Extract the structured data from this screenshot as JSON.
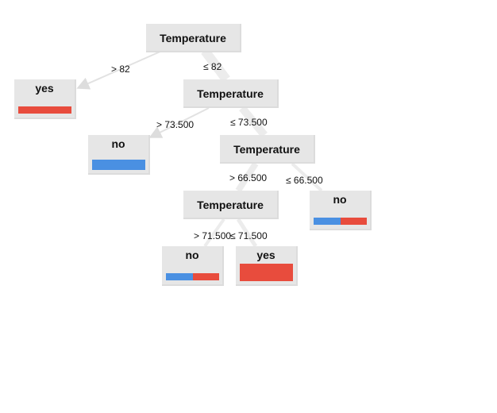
{
  "colors": {
    "no": "#4a90e2",
    "yes": "#e84c3d",
    "node_bg": "#e6e6e6",
    "edge": "#e8e8e8"
  },
  "tree": {
    "root": {
      "label": "Temperature"
    },
    "n1": {
      "label": "Temperature"
    },
    "n2": {
      "label": "Temperature"
    },
    "n3": {
      "label": "Temperature"
    },
    "leaf_yes_top": {
      "label": "yes",
      "dist": {
        "no": 0.0,
        "yes": 1.0
      }
    },
    "leaf_no_mid": {
      "label": "no",
      "dist": {
        "no": 1.0,
        "yes": 0.0
      }
    },
    "leaf_no_right": {
      "label": "no",
      "dist": {
        "no": 0.5,
        "yes": 0.5
      }
    },
    "leaf_no_bottom": {
      "label": "no",
      "dist": {
        "no": 0.5,
        "yes": 0.5
      }
    },
    "leaf_yes_bottom": {
      "label": "yes",
      "dist": {
        "no": 0.0,
        "yes": 1.0
      }
    }
  },
  "edges": {
    "e_root_gt": "> 82",
    "e_root_le": "≤ 82",
    "e_n1_gt": "> 73.500",
    "e_n1_le": "≤ 73.500",
    "e_n2_gt": "> 66.500",
    "e_n2_le": "≤ 66.500",
    "e_n3_gt": "> 71.500",
    "e_n3_le": "≤ 71.500"
  }
}
